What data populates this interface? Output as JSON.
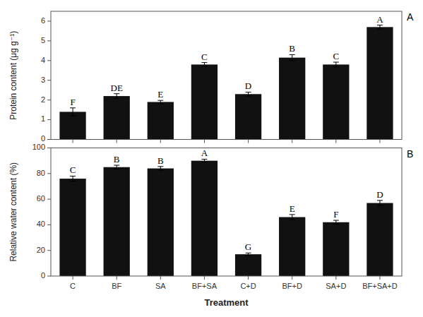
{
  "chart_data": [
    {
      "type": "bar",
      "title": "A",
      "categories": [
        "C",
        "BF",
        "SA",
        "BF+SA",
        "C+D",
        "BF+D",
        "SA+D",
        "BF+SA+D"
      ],
      "values": [
        1.4,
        2.2,
        1.9,
        3.8,
        2.3,
        4.15,
        3.8,
        5.7
      ],
      "errors": [
        0.2,
        0.12,
        0.08,
        0.1,
        0.1,
        0.15,
        0.12,
        0.1
      ],
      "annotations": [
        "F",
        "DE",
        "E",
        "C",
        "D",
        "B",
        "C",
        "A"
      ],
      "y_label": "Protein content (μg g⁻¹)",
      "color": "#111111",
      "ylim": [
        0,
        6.5
      ],
      "yticks": [
        0,
        1,
        2,
        3,
        4,
        5,
        6
      ],
      "grid": false,
      "tick_labels": "y"
    },
    {
      "type": "bar",
      "title": "B",
      "categories": [
        "C",
        "BF",
        "SA",
        "BF+SA",
        "C+D",
        "BF+D",
        "SA+D",
        "BF+SA+D"
      ],
      "values": [
        76,
        85,
        84,
        90,
        17,
        46,
        42,
        57
      ],
      "errors": [
        2.0,
        1.5,
        1.5,
        1.2,
        1.0,
        2.0,
        1.5,
        2.0
      ],
      "annotations": [
        "C",
        "B",
        "B",
        "A",
        "G",
        "E",
        "F",
        "D"
      ],
      "y_label": "Relative water content (%)",
      "x_label": "Treatment",
      "color": "#111111",
      "ylim": [
        0,
        100
      ],
      "yticks": [
        0,
        20,
        40,
        60,
        80,
        100
      ],
      "grid": false
    }
  ]
}
